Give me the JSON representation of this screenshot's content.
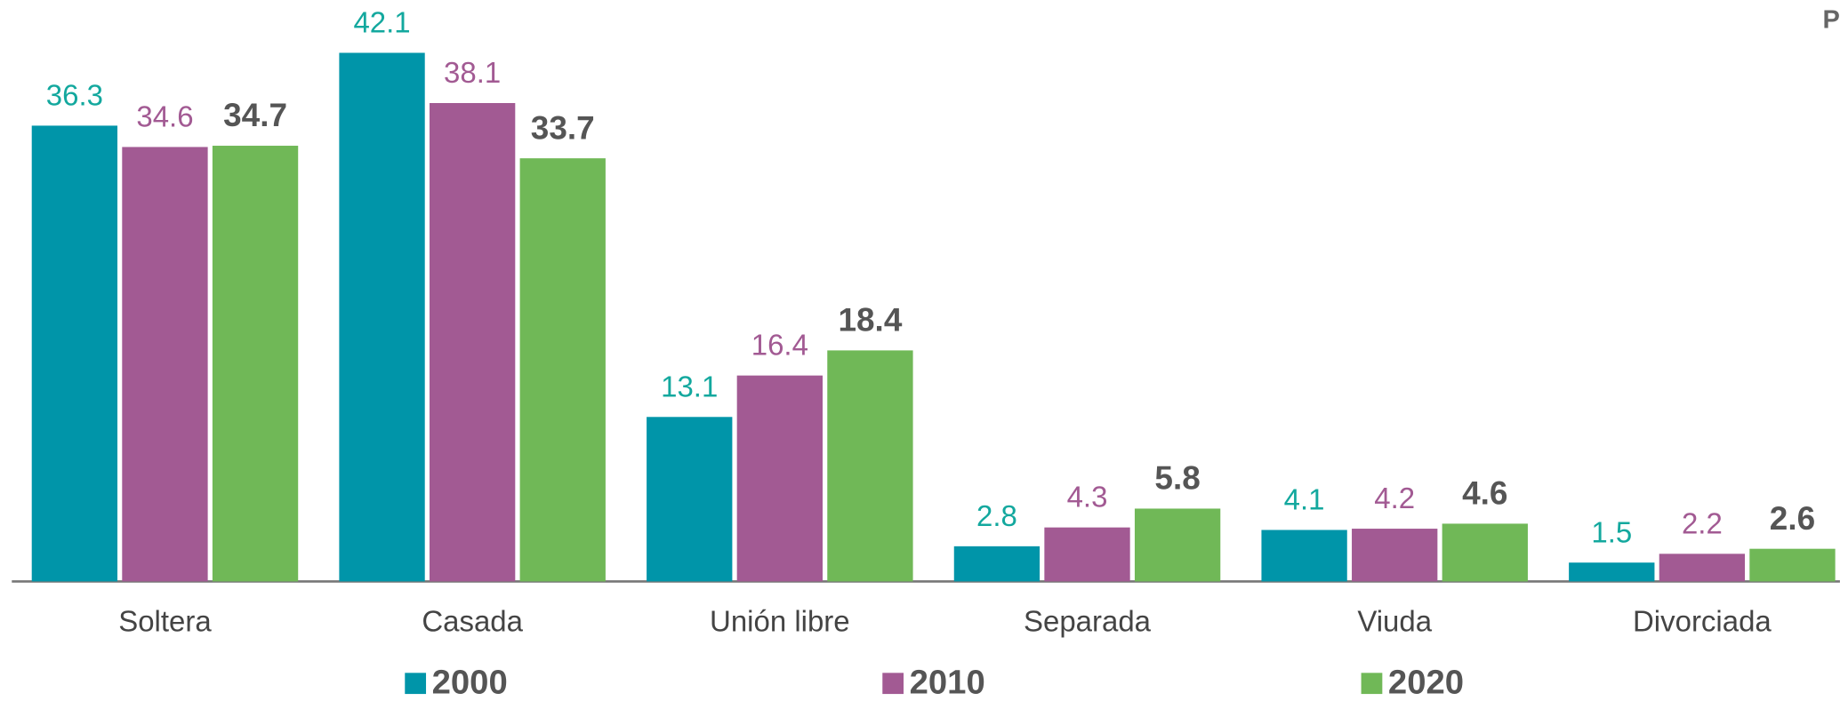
{
  "chart_data": {
    "type": "bar",
    "title": "P",
    "categories": [
      "Soltera",
      "Casada",
      "Unión libre",
      "Separada",
      "Viuda",
      "Divorciada"
    ],
    "series": [
      {
        "name": "2000",
        "color": "#0095a9",
        "label_color": "#13a89e",
        "label_bold": false,
        "values": [
          36.3,
          42.1,
          13.1,
          2.8,
          4.1,
          1.5
        ]
      },
      {
        "name": "2010",
        "color": "#a25a93",
        "label_color": "#a25a93",
        "label_bold": false,
        "values": [
          34.6,
          38.1,
          16.4,
          4.3,
          4.2,
          2.2
        ]
      },
      {
        "name": "2020",
        "color": "#70b857",
        "label_color": "#555555",
        "label_bold": true,
        "values": [
          34.7,
          33.7,
          18.4,
          5.8,
          4.6,
          2.6
        ]
      }
    ],
    "ylim": [
      0,
      45
    ],
    "legend": "bottom"
  }
}
